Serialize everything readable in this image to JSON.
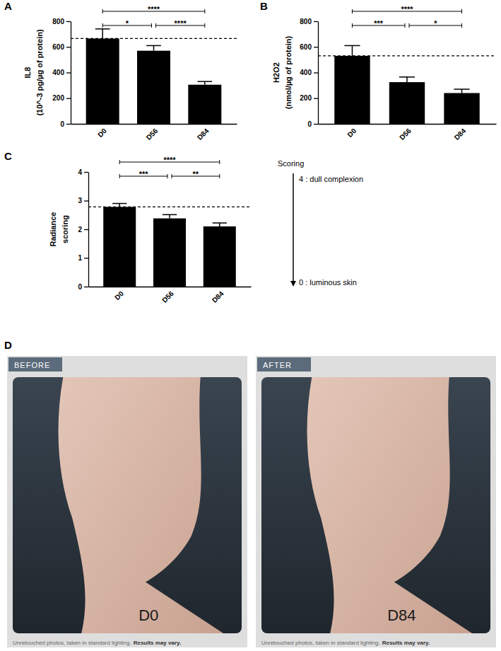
{
  "chart_data": [
    {
      "type": "bar",
      "panel": "A",
      "y_label": [
        "IL8",
        "(10^-3 pg/µg of protein)"
      ],
      "categories": [
        "D0",
        "D56",
        "D84"
      ],
      "values": [
        665,
        570,
        305
      ],
      "errors": [
        75,
        40,
        25
      ],
      "color": "#000000",
      "ylim": [
        0,
        800
      ],
      "yticks": [
        0,
        200,
        400,
        600,
        800
      ],
      "reference": 665,
      "brackets": [
        {
          "from": "D0",
          "to": "D84",
          "label": "****"
        },
        {
          "from": "D0",
          "to": "D56",
          "label": "*"
        },
        {
          "from": "D56",
          "to": "D84",
          "label": "****"
        }
      ]
    },
    {
      "type": "bar",
      "panel": "B",
      "y_label": [
        "H2O2",
        "(nmol/µg of protein)"
      ],
      "categories": [
        "D0",
        "D56",
        "D84"
      ],
      "values": [
        530,
        325,
        240
      ],
      "errors": [
        80,
        40,
        30
      ],
      "color": "#000000",
      "ylim": [
        0,
        800
      ],
      "yticks": [
        0,
        200,
        400,
        600,
        800
      ],
      "reference": 530,
      "brackets": [
        {
          "from": "D0",
          "to": "D84",
          "label": "****"
        },
        {
          "from": "D0",
          "to": "D56",
          "label": "***"
        },
        {
          "from": "D56",
          "to": "D84",
          "label": "*"
        }
      ]
    },
    {
      "type": "bar",
      "panel": "C",
      "y_label": [
        "Radiance",
        "scoring"
      ],
      "categories": [
        "D0",
        "D56",
        "D84"
      ],
      "values": [
        2.78,
        2.38,
        2.1
      ],
      "errors": [
        0.12,
        0.13,
        0.12
      ],
      "color": "#000000",
      "ylim": [
        0,
        4
      ],
      "yticks": [
        0,
        1,
        2,
        3,
        4
      ],
      "reference": 2.78,
      "brackets": [
        {
          "from": "D0",
          "to": "D84",
          "label": "****"
        },
        {
          "from": "D0",
          "to": "D56",
          "label": "***"
        },
        {
          "from": "D56",
          "to": "D84",
          "label": "**"
        }
      ],
      "scale_note": {
        "title": "Scoring",
        "top": "4 : dull complexion",
        "bottom": "0 : luminous skin"
      }
    }
  ],
  "panel_d": {
    "panel": "D",
    "photos": [
      {
        "tag": "BEFORE",
        "day": "D0"
      },
      {
        "tag": "AFTER",
        "day": "D84"
      }
    ],
    "caption": "Unretouched photos, taken in standard lighting.",
    "caption_emphasis": "Results may vary."
  }
}
